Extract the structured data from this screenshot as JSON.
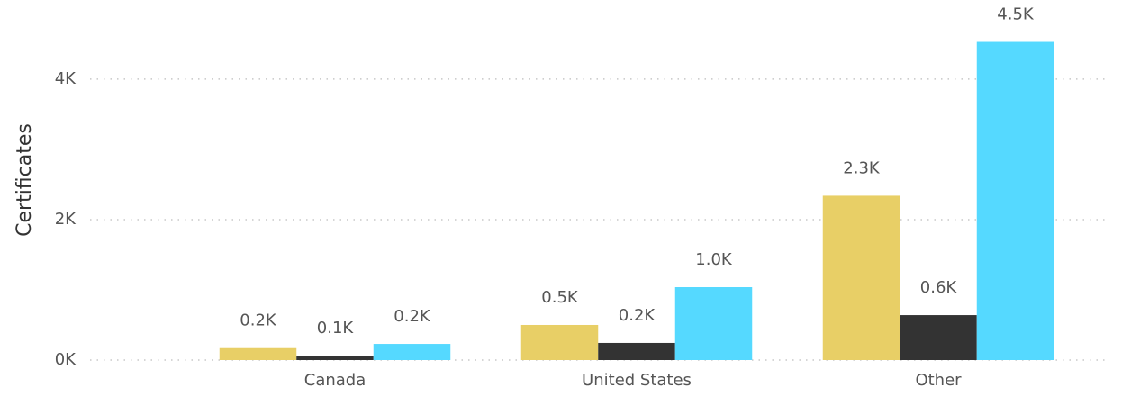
{
  "chart_data": {
    "type": "bar",
    "y_label": "Certificates",
    "categories": [
      "Canada",
      "United States",
      "Other"
    ],
    "series": [
      {
        "color": "#e8cf66",
        "values": [
          170,
          500,
          2340
        ],
        "value_labels": [
          "0.2K",
          "0.5K",
          "2.3K"
        ]
      },
      {
        "color": "#333333",
        "values": [
          64,
          244,
          640
        ],
        "value_labels": [
          "0.1K",
          "0.2K",
          "0.6K"
        ]
      },
      {
        "color": "#55d9ff",
        "values": [
          230,
          1038,
          4530
        ],
        "value_labels": [
          "0.2K",
          "1.0K",
          "4.5K"
        ]
      }
    ],
    "ylim": [
      0,
      4870
    ],
    "yticks": [
      {
        "value": 0,
        "label": "0K"
      },
      {
        "value": 2000,
        "label": "2K"
      },
      {
        "value": 4000,
        "label": "4K"
      }
    ],
    "grid": true
  }
}
